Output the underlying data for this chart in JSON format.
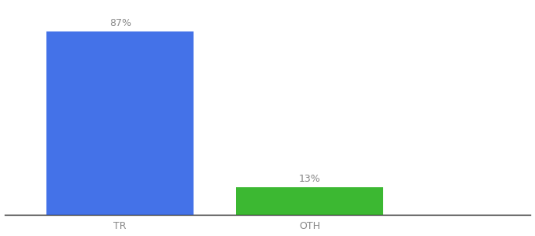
{
  "categories": [
    "TR",
    "OTH"
  ],
  "values": [
    87,
    13
  ],
  "bar_colors": [
    "#4472e8",
    "#3cb832"
  ],
  "labels": [
    "87%",
    "13%"
  ],
  "background_color": "#ffffff",
  "ylim": [
    0,
    100
  ],
  "bar_width": 0.28,
  "x_positions": [
    0.22,
    0.58
  ],
  "xlim": [
    0,
    1
  ],
  "figsize": [
    6.8,
    3.0
  ],
  "dpi": 100,
  "label_fontsize": 9,
  "tick_fontsize": 9,
  "label_color": "#888888",
  "tick_color": "#888888"
}
